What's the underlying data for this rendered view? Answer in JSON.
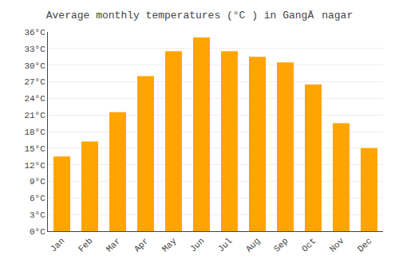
{
  "chart_data": {
    "type": "bar",
    "title": "Average monthly temperatures (°C ) in GangÄnagar",
    "categories": [
      "Jan",
      "Feb",
      "Mar",
      "Apr",
      "May",
      "Jun",
      "Jul",
      "Aug",
      "Sep",
      "Oct",
      "Nov",
      "Dec"
    ],
    "values": [
      13.5,
      16.2,
      21.5,
      28.0,
      32.5,
      35.0,
      32.5,
      31.5,
      30.5,
      26.5,
      19.5,
      15.0
    ],
    "color": "#FFA500",
    "ylim": [
      0,
      36
    ],
    "yticks": [
      {
        "value": 0,
        "label": "0°C"
      },
      {
        "value": 3,
        "label": "3°C"
      },
      {
        "value": 6,
        "label": "6°C"
      },
      {
        "value": 9,
        "label": "9°C"
      },
      {
        "value": 12,
        "label": "12°C"
      },
      {
        "value": 15,
        "label": "15°C"
      },
      {
        "value": 18,
        "label": "18°C"
      },
      {
        "value": 21,
        "label": "21°C"
      },
      {
        "value": 24,
        "label": "24°C"
      },
      {
        "value": 27,
        "label": "27°C"
      },
      {
        "value": 30,
        "label": "30°C"
      },
      {
        "value": 33,
        "label": "33°C"
      },
      {
        "value": 36,
        "label": "36°C"
      }
    ],
    "grid": true
  }
}
